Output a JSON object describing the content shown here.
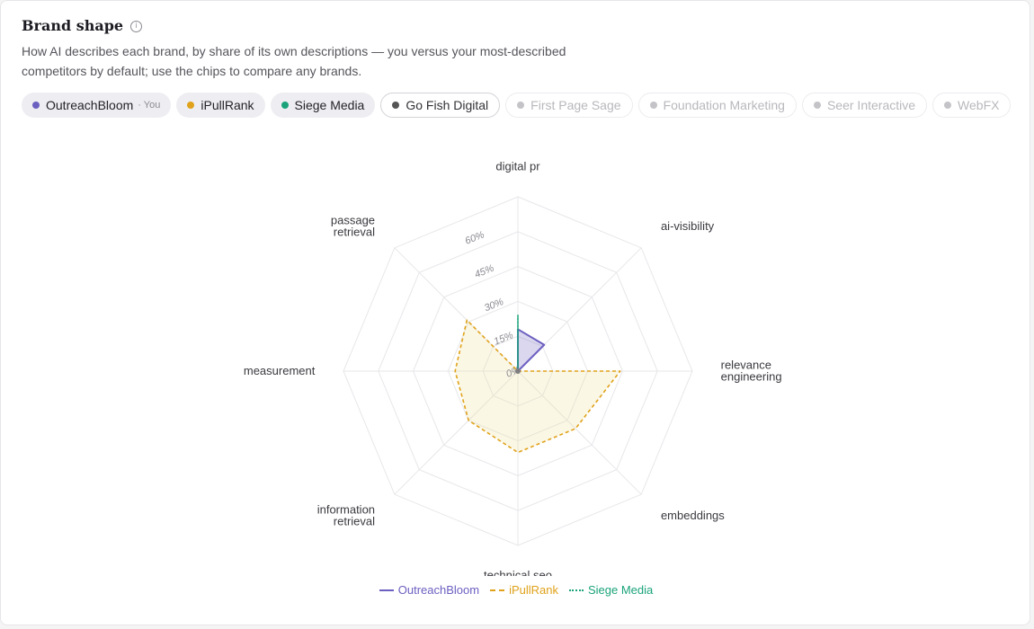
{
  "header": {
    "title": "Brand shape",
    "description": "How AI describes each brand, by share of its own descriptions — you versus your most-described competitors by default; use the chips to compare any brands."
  },
  "chips": [
    {
      "label": "OutreachBloom",
      "suffix": "· You",
      "color": "#6b5fc0",
      "state": "active"
    },
    {
      "label": "iPullRank",
      "color": "#e0a21a",
      "state": "active"
    },
    {
      "label": "Siege Media",
      "color": "#1aa37a",
      "state": "active"
    },
    {
      "label": "Go Fish Digital",
      "color": "#555555",
      "state": "outlined"
    },
    {
      "label": "First Page Sage",
      "color": "#c4c4c8",
      "state": "inactive"
    },
    {
      "label": "Foundation Marketing",
      "color": "#c4c4c8",
      "state": "inactive"
    },
    {
      "label": "Seer Interactive",
      "color": "#c4c4c8",
      "state": "inactive"
    },
    {
      "label": "WebFX",
      "color": "#c4c4c8",
      "state": "inactive"
    }
  ],
  "chart_data": {
    "type": "radar",
    "axes": [
      "digital pr",
      "ai-visibility",
      "relevance engineering",
      "embeddings",
      "technical seo",
      "information retrieval",
      "measurement",
      "passage retrieval"
    ],
    "axis_label_lines": [
      [
        "digital pr"
      ],
      [
        "ai-visibility"
      ],
      [
        "relevance",
        "engineering"
      ],
      [
        "embeddings"
      ],
      [
        "technical seo"
      ],
      [
        "information",
        "retrieval"
      ],
      [
        "measurement"
      ],
      [
        "passage",
        "retrieval"
      ]
    ],
    "rlim": [
      0,
      75
    ],
    "ticks": [
      0,
      15,
      30,
      45,
      60
    ],
    "tick_labels": [
      "0%",
      "15%",
      "30%",
      "45%",
      "60%"
    ],
    "grid": true,
    "legend_position": "bottom",
    "series": [
      {
        "name": "OutreachBloom",
        "values": [
          18,
          16,
          0,
          0,
          0,
          0,
          0,
          0
        ],
        "color": "#6b5fc0",
        "style": "solid",
        "fill": "rgba(107,95,192,0.25)"
      },
      {
        "name": "iPullRank",
        "values": [
          0,
          0,
          44,
          35,
          35,
          30,
          27,
          31
        ],
        "color": "#e0a21a",
        "style": "dashed",
        "fill": "rgba(240,225,160,0.28)"
      },
      {
        "name": "Siege Media",
        "values": [
          24,
          0,
          0,
          0,
          0,
          0,
          0,
          0
        ],
        "color": "#1aa37a",
        "style": "dotted",
        "fill": "none"
      }
    ]
  }
}
